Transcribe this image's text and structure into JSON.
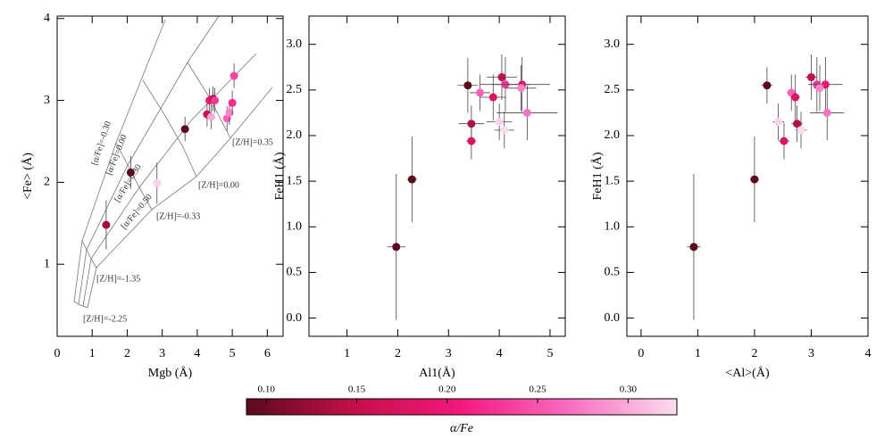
{
  "chart_data": [
    {
      "type": "scatter",
      "xlabel": "Mgb (Å)",
      "ylabel": "<Fe> (Å)",
      "xlim": [
        0,
        6.45
      ],
      "ylim": [
        0.12,
        4.03
      ],
      "xticks": [
        0,
        1,
        2,
        3,
        4,
        5,
        6
      ],
      "yticks": [
        1,
        2,
        3,
        4
      ],
      "x": [
        1.4,
        2.1,
        2.85,
        3.65,
        4.28,
        4.4,
        4.35,
        4.45,
        4.5,
        4.85,
        4.92,
        5.0,
        5.05
      ],
      "values": [
        1.48,
        2.12,
        1.99,
        2.65,
        2.83,
        2.8,
        3.0,
        3.02,
        3.0,
        2.78,
        2.85,
        2.97,
        3.3
      ],
      "xerr": [
        0.1,
        0.1,
        0.1,
        0.1,
        0.1,
        0.1,
        0.1,
        0.1,
        0.1,
        0.1,
        0.1,
        0.1,
        0.1
      ],
      "yerr": [
        0.3,
        0.2,
        0.25,
        0.15,
        0.15,
        0.15,
        0.15,
        0.15,
        0.15,
        0.15,
        0.15,
        0.15,
        0.15
      ],
      "alpha": [
        0.13,
        0.08,
        0.32,
        0.09,
        0.16,
        0.3,
        0.2,
        0.15,
        0.23,
        0.26,
        0.28,
        0.22,
        0.24
      ],
      "annotations": [
        "[Z/H]=0.35",
        "[Z/H]=0.00",
        "[Z/H]=-0.33",
        "[Z/H]=-1.35",
        "[Z/H]=-2.25",
        "[α/Fe]=-0.30",
        "[α/Fe]=0.00",
        "[α/Fe]=0.30",
        "[α/Fe]=0.50"
      ]
    },
    {
      "type": "scatter",
      "xlabel": "Al1(Å)",
      "ylabel": "FeH1 (Å)",
      "xlim": [
        0.25,
        5.3
      ],
      "ylim": [
        -0.2,
        3.31
      ],
      "xticks": [
        1,
        2,
        3,
        4,
        5
      ],
      "yticks": [
        {
          "value": 0,
          "label": "0.0"
        },
        0.5,
        {
          "value": 1,
          "label": "1.0"
        },
        1.5,
        {
          "value": 2,
          "label": "2.0"
        },
        2.5,
        {
          "value": 3,
          "label": "3.0"
        }
      ],
      "x": [
        1.97,
        2.28,
        3.38,
        3.45,
        3.45,
        3.62,
        3.88,
        4.0,
        4.05,
        4.1,
        4.12,
        4.45,
        4.43,
        4.55
      ],
      "values": [
        0.78,
        1.52,
        2.55,
        2.13,
        1.94,
        2.47,
        2.42,
        2.15,
        2.64,
        2.06,
        2.56,
        2.56,
        2.52,
        2.25
      ],
      "xerr": [
        0.18,
        0.1,
        0.2,
        0.25,
        0.1,
        0.2,
        0.25,
        0.25,
        0.3,
        0.2,
        0.5,
        0.55,
        0.3,
        0.6
      ],
      "yerr": [
        0.8,
        0.47,
        0.3,
        0.2,
        0.2,
        0.2,
        0.25,
        0.2,
        0.25,
        0.2,
        0.3,
        0.3,
        0.25,
        0.3
      ],
      "alpha": [
        0.09,
        0.09,
        0.08,
        0.14,
        0.18,
        0.26,
        0.18,
        0.32,
        0.15,
        0.34,
        0.23,
        0.2,
        0.28,
        0.27
      ]
    },
    {
      "type": "scatter",
      "xlabel": "<Al>(Å)",
      "ylabel": "FeH1 (Å)",
      "xlim": [
        -0.25,
        4
      ],
      "ylim": [
        -0.2,
        3.31
      ],
      "xticks": [
        0,
        1,
        2,
        3,
        4
      ],
      "yticks": [
        {
          "value": 0,
          "label": "0.0"
        },
        0.5,
        {
          "value": 1,
          "label": "1.0"
        },
        1.5,
        {
          "value": 2,
          "label": "2.0"
        },
        2.5,
        {
          "value": 3,
          "label": "3.0"
        }
      ],
      "x": [
        0.93,
        2.0,
        2.22,
        2.75,
        2.52,
        2.65,
        2.72,
        2.42,
        3.0,
        2.82,
        3.1,
        3.25,
        3.15,
        3.28
      ],
      "values": [
        0.78,
        1.52,
        2.55,
        2.13,
        1.94,
        2.47,
        2.42,
        2.15,
        2.64,
        2.06,
        2.56,
        2.56,
        2.52,
        2.25
      ],
      "xerr": [
        0.12,
        0.08,
        0.1,
        0.1,
        0.1,
        0.08,
        0.08,
        0.1,
        0.1,
        0.1,
        0.1,
        0.3,
        0.1,
        0.3
      ],
      "yerr": [
        0.8,
        0.47,
        0.2,
        0.2,
        0.2,
        0.2,
        0.25,
        0.2,
        0.25,
        0.2,
        0.3,
        0.3,
        0.25,
        0.3
      ],
      "alpha": [
        0.09,
        0.09,
        0.08,
        0.14,
        0.18,
        0.26,
        0.18,
        0.32,
        0.15,
        0.34,
        0.23,
        0.2,
        0.28,
        0.27
      ]
    },
    {
      "type": "colorbar",
      "label": "α/Fe",
      "lim": [
        0.089,
        0.327
      ],
      "ticks": [
        {
          "value": 0.1,
          "label": "0.10"
        },
        {
          "value": 0.15,
          "label": "0.15"
        },
        {
          "value": 0.2,
          "label": "0.20"
        },
        {
          "value": 0.25,
          "label": "0.25"
        },
        {
          "value": 0.3,
          "label": "0.30"
        }
      ],
      "colormap": [
        "#5a0a1c",
        "#c40f48",
        "#f2187e",
        "#f86ebf",
        "#fcdcf0"
      ]
    }
  ]
}
